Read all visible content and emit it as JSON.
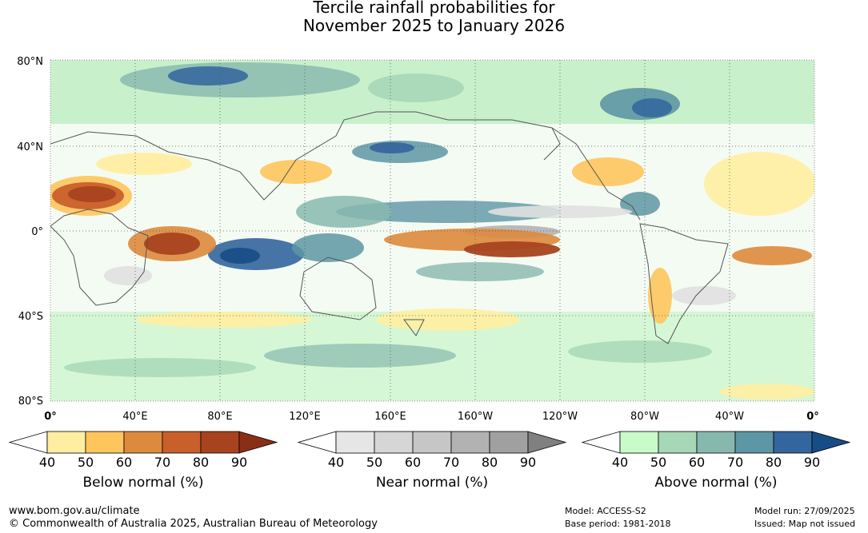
{
  "title": {
    "line1": "Tercile rainfall probabilities for",
    "line2": "November 2025 to January 2026"
  },
  "map": {
    "lat_labels": [
      "80°N",
      "40°N",
      "0°",
      "40°S",
      "80°S"
    ],
    "lon_labels": [
      "0°",
      "40°E",
      "80°E",
      "120°E",
      "160°E",
      "160°W",
      "120°W",
      "80°W",
      "40°W",
      "0°"
    ]
  },
  "legends": [
    {
      "id": "below",
      "title": "Below normal (%)",
      "ticks": [
        "40",
        "50",
        "60",
        "70",
        "80",
        "90"
      ],
      "colors": [
        "#ffeea1",
        "#fec55c",
        "#de8a3d",
        "#c95f2b",
        "#a8431f",
        "#8a2f16"
      ]
    },
    {
      "id": "near",
      "title": "Near normal (%)",
      "ticks": [
        "40",
        "50",
        "60",
        "70",
        "80",
        "90"
      ],
      "colors": [
        "#e6e6e6",
        "#d6d6d6",
        "#c6c6c6",
        "#b2b2b2",
        "#a0a0a0",
        "#808080"
      ]
    },
    {
      "id": "above",
      "title": "Above normal (%)",
      "ticks": [
        "40",
        "50",
        "60",
        "70",
        "80",
        "90"
      ],
      "colors": [
        "#c9fac9",
        "#a6d7b7",
        "#87b8ae",
        "#5d96a5",
        "#33659e",
        "#174d86"
      ]
    }
  ],
  "footer": {
    "url": "www.bom.gov.au/climate",
    "copyright": "© Commonwealth of Australia 2025, Australian Bureau of Meteorology",
    "model": "Model: ACCESS-S2",
    "base_period": "Base period: 1981-2018",
    "model_run": "Model run: 27/09/2025",
    "issued": "Issued: Map not issued"
  }
}
